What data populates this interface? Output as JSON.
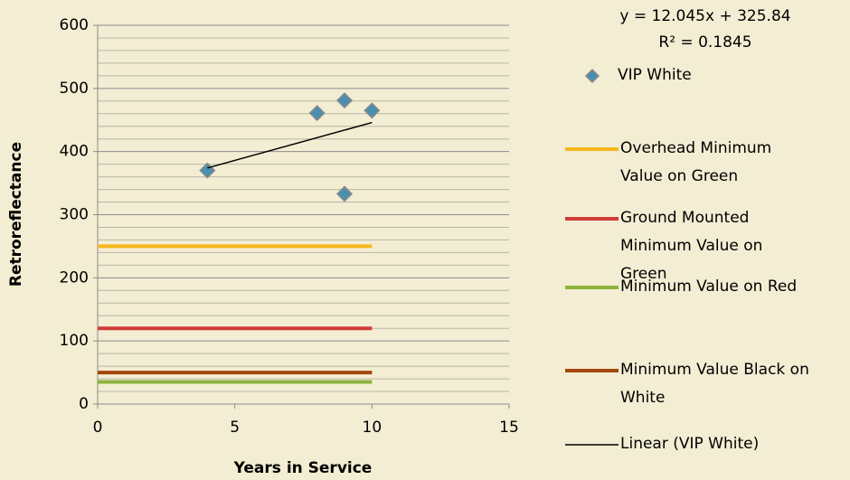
{
  "chart_data": {
    "type": "scatter",
    "xlabel": "Years in Service",
    "ylabel": "Retroreflectance",
    "xlim": [
      0,
      15
    ],
    "xticks": [
      0,
      5,
      10,
      15
    ],
    "ylim": [
      0,
      600
    ],
    "yticks": [
      0,
      100,
      200,
      300,
      400,
      500,
      600
    ],
    "minor_yticks": [
      20,
      40,
      60,
      80,
      120,
      140,
      160,
      180,
      220,
      240,
      260,
      280,
      320,
      340,
      360,
      380,
      420,
      440,
      460,
      480,
      520,
      540,
      560,
      580
    ],
    "grid": true,
    "legend": "right",
    "annotations": [
      "y = 12.045x + 325.84",
      "R² = 0.1845"
    ],
    "series": [
      {
        "name": "VIP White",
        "kind": "markers",
        "color": "#4a8fae",
        "x": [
          4,
          8,
          9,
          9,
          10
        ],
        "values": [
          370,
          461,
          481,
          333,
          465
        ]
      },
      {
        "name": "Overhead Minimum Value on Green",
        "kind": "line",
        "color": "#f6b81c",
        "x": [
          0,
          10
        ],
        "values": [
          250,
          250
        ]
      },
      {
        "name": "Ground Mounted Minimum Value on Green",
        "kind": "line",
        "color": "#d03c3a",
        "x": [
          0,
          10
        ],
        "values": [
          120,
          120
        ]
      },
      {
        "name": "Minimum Value on Red",
        "kind": "line",
        "color": "#8db33c",
        "x": [
          0,
          10
        ],
        "values": [
          35,
          35
        ]
      },
      {
        "name": "Minimum Value Black on White",
        "kind": "line",
        "color": "#a3470f",
        "x": [
          0,
          10
        ],
        "values": [
          50,
          50
        ]
      },
      {
        "name": "Linear (VIP White)",
        "kind": "trend",
        "color": "#000000",
        "x": [
          4,
          10
        ],
        "values": [
          374,
          446
        ]
      }
    ]
  }
}
